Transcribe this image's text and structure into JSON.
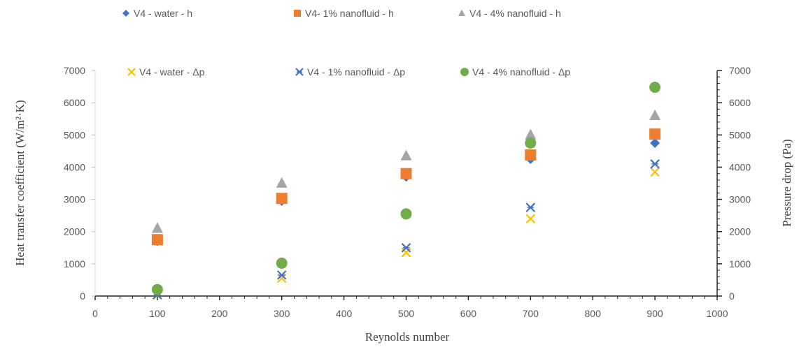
{
  "chart_data": {
    "type": "scatter",
    "title": "",
    "xlabel": "Reynolds  number",
    "ylabel_left": "Heat transfer  coefficient (W/m²·K)",
    "ylabel_right": "Pressure drop (Pa)",
    "xlim": [
      0,
      1000
    ],
    "ylim_left": [
      0,
      7000
    ],
    "ylim_right": [
      0,
      7000
    ],
    "x_ticks": [
      "0",
      "100",
      "200",
      "300",
      "400",
      "500",
      "600",
      "700",
      "800",
      "900",
      "1000"
    ],
    "y_left_ticks": [
      "0",
      "1000",
      "2000",
      "3000",
      "4000",
      "5000",
      "6000",
      "7000"
    ],
    "y_right_ticks": [
      "0",
      "1000",
      "2000",
      "3000",
      "4000",
      "5000",
      "6000",
      "7000"
    ],
    "grid": false,
    "legend_placement": "top",
    "series": [
      {
        "name": "V4 - water - h",
        "axis": "left",
        "marker": "diamond",
        "color": "#4472C4",
        "x": [
          100,
          300,
          500,
          700,
          900
        ],
        "y": [
          1700,
          2950,
          3700,
          4250,
          4750
        ]
      },
      {
        "name": "V4- 1% nanofluid - h",
        "axis": "left",
        "marker": "square",
        "color": "#ED7D31",
        "x": [
          100,
          300,
          500,
          700,
          900
        ],
        "y": [
          1750,
          3030,
          3800,
          4380,
          5030
        ]
      },
      {
        "name": "V4 - 4% nanofluid - h",
        "axis": "left",
        "marker": "triangle",
        "color": "#A5A5A5",
        "x": [
          100,
          300,
          500,
          700,
          900
        ],
        "y": [
          2100,
          3500,
          4350,
          5000,
          5600
        ]
      },
      {
        "name": "V4 - water - Δp",
        "axis": "right",
        "marker": "x",
        "color": "#FFC000",
        "x": [
          100,
          300,
          500,
          700,
          900
        ],
        "y": [
          30,
          550,
          1350,
          2400,
          3850
        ]
      },
      {
        "name": "V4 - 1% nanofluid - Δp",
        "axis": "right",
        "marker": "star",
        "color": "#4472C4",
        "x": [
          100,
          300,
          500,
          700,
          900
        ],
        "y": [
          40,
          650,
          1500,
          2750,
          4100
        ]
      },
      {
        "name": "V4 - 4% nanofluid -  Δp",
        "axis": "right",
        "marker": "circle",
        "color": "#70AD47",
        "x": [
          100,
          300,
          500,
          700,
          900
        ],
        "y": [
          200,
          1020,
          2550,
          4750,
          6480
        ]
      }
    ]
  }
}
